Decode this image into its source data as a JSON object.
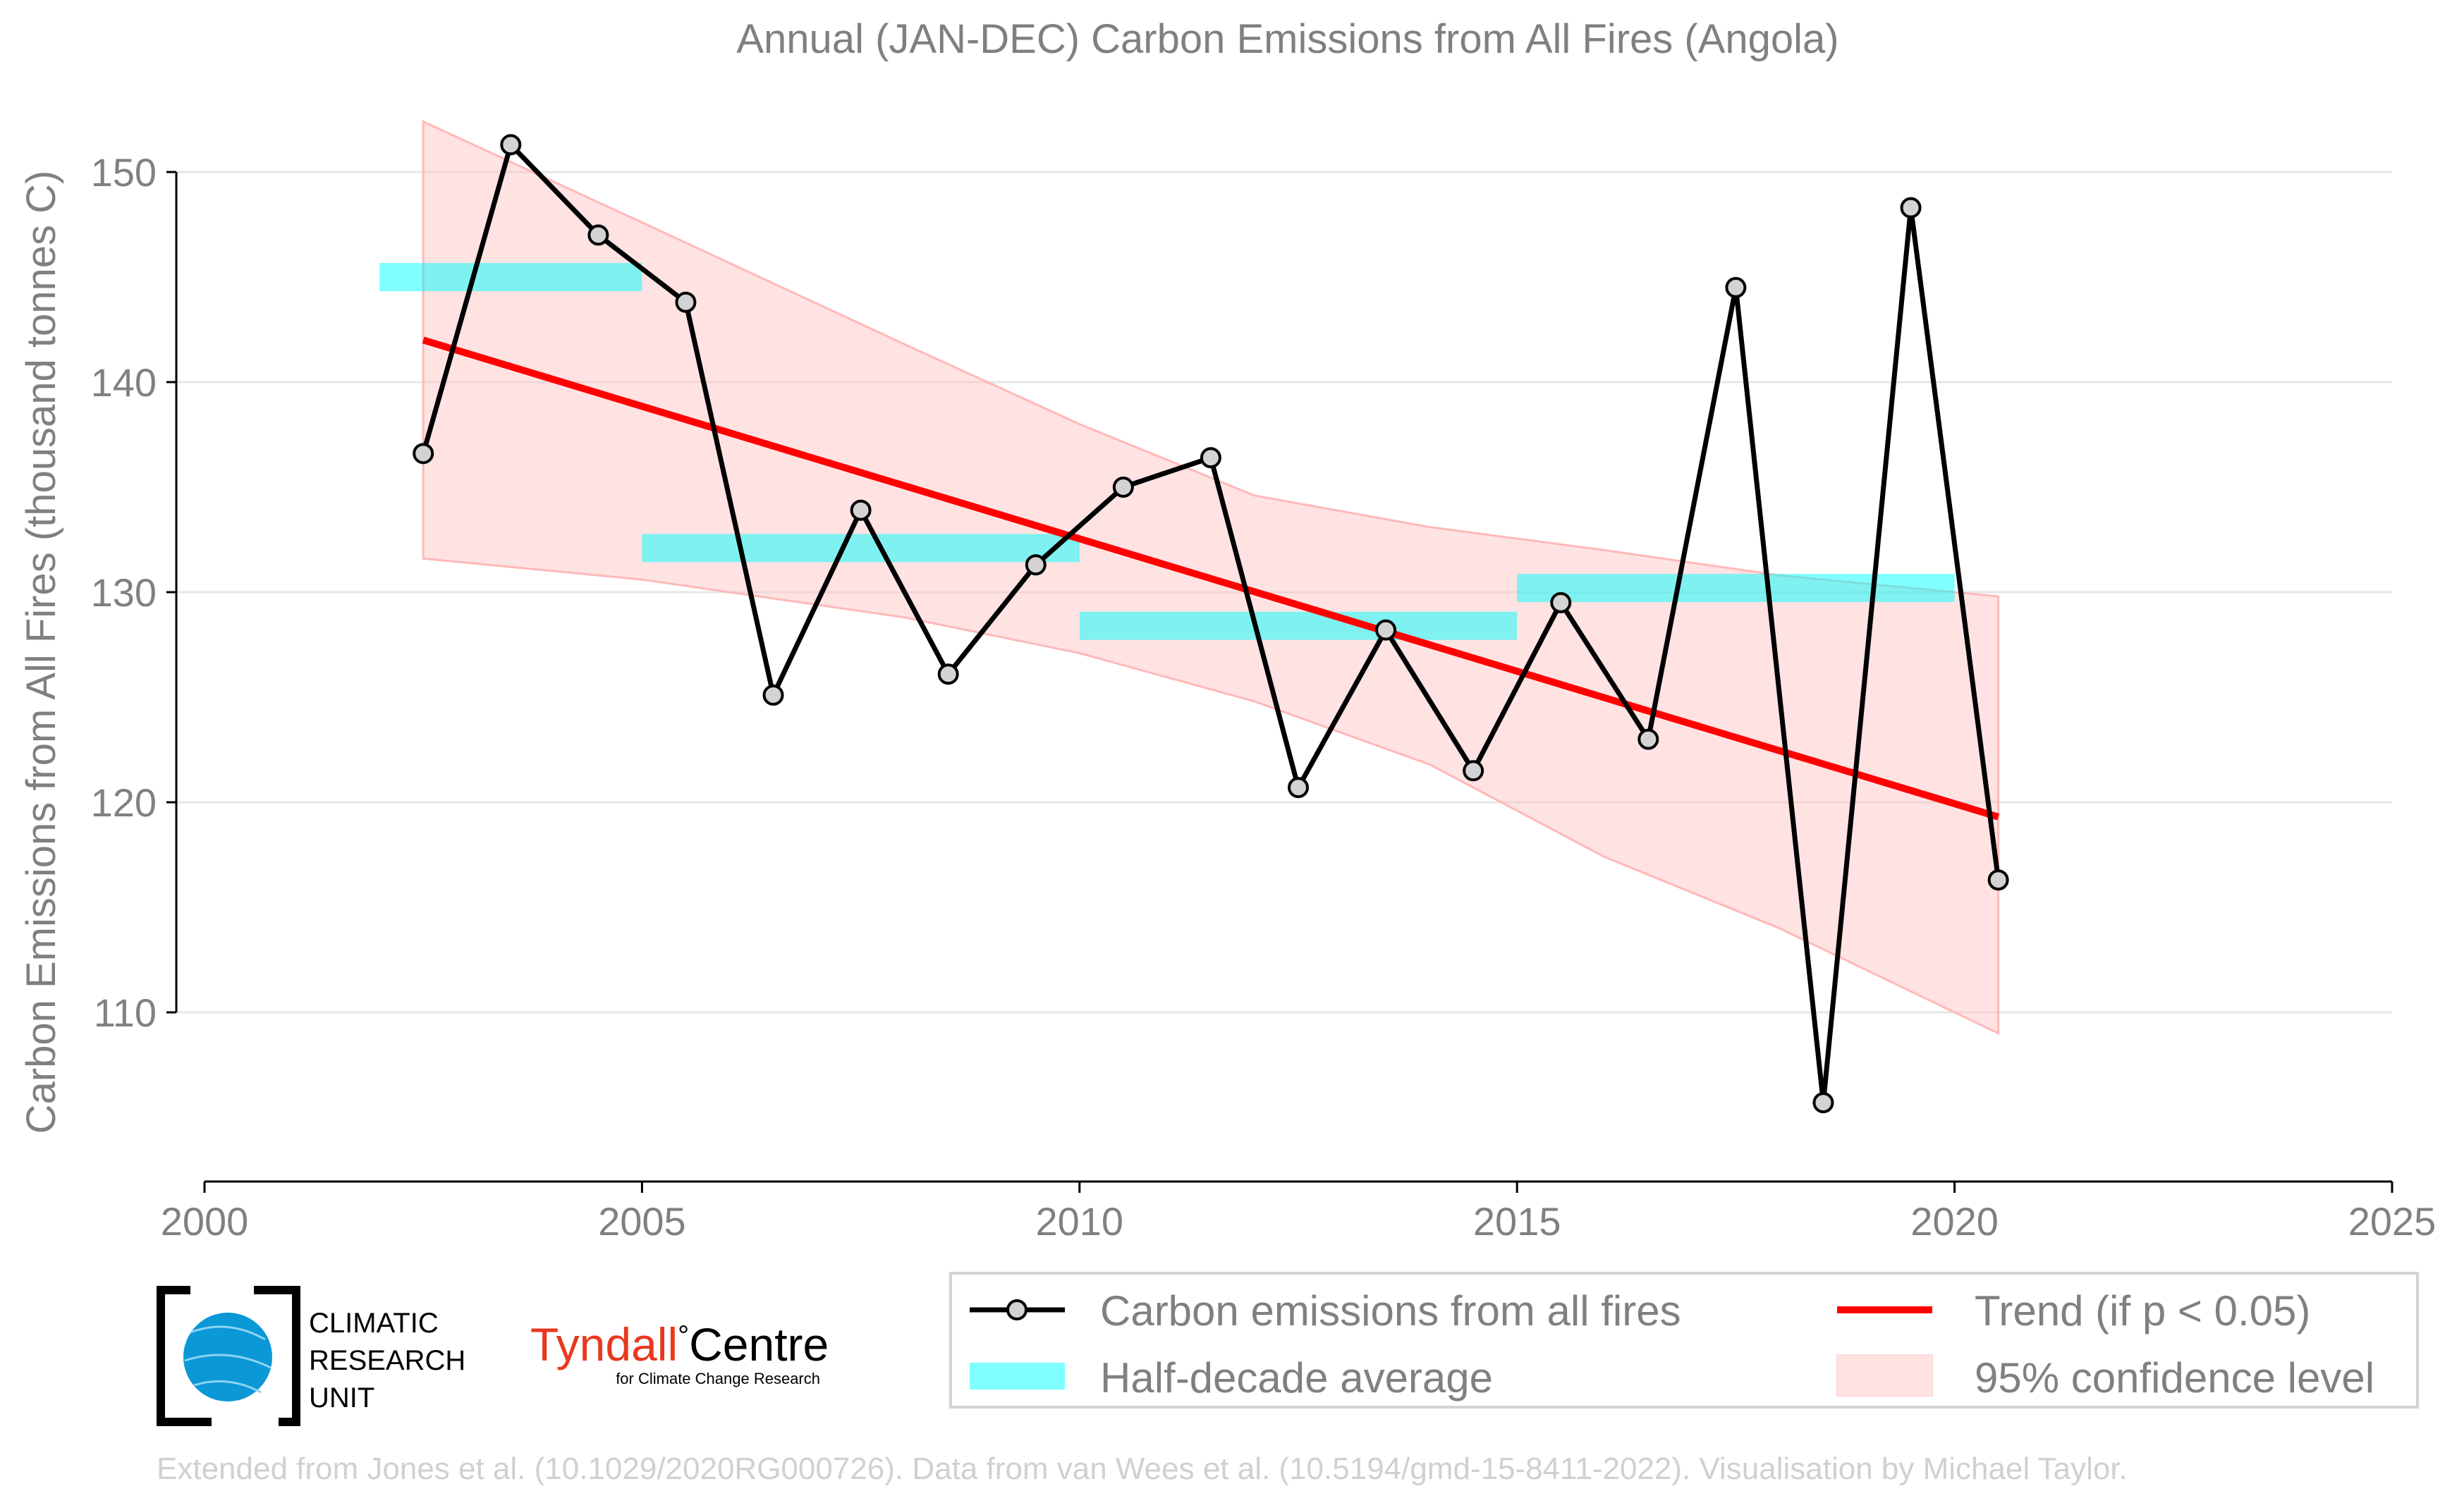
{
  "chart_data": {
    "type": "line",
    "title": "Annual (JAN-DEC) Carbon Emissions from All Fires (Angola)",
    "ylabel": "Carbon Emissions from All Fires (thousand tonnes C)",
    "xlabel": "",
    "xlim": [
      2000,
      2025
    ],
    "ylim": [
      102,
      156
    ],
    "xticks": [
      2000,
      2005,
      2010,
      2015,
      2020,
      2025
    ],
    "yticks": [
      110,
      120,
      130,
      140,
      150
    ],
    "grid": "horizontal",
    "legend_position": "bottom-right",
    "series": [
      {
        "name": "Carbon emissions from all fires",
        "color": "#000000",
        "marker_fill": "#d3d3d3",
        "x": [
          2002.5,
          2003.5,
          2004.5,
          2005.5,
          2006.5,
          2007.5,
          2008.5,
          2009.5,
          2010.5,
          2011.5,
          2012.5,
          2013.5,
          2014.5,
          2015.5,
          2016.5,
          2017.5,
          2018.5,
          2019.5,
          2020.5
        ],
        "y": [
          136.6,
          151.3,
          147.0,
          143.8,
          125.1,
          133.9,
          126.1,
          131.3,
          135.0,
          136.4,
          120.7,
          128.2,
          121.5,
          129.5,
          123.0,
          144.5,
          105.7,
          148.3,
          116.3
        ]
      }
    ],
    "half_decade_average": {
      "name": "Half-decade average",
      "color": "#00ffff",
      "segments": [
        {
          "x0": 2002,
          "x1": 2005,
          "y": 145.0
        },
        {
          "x0": 2005,
          "x1": 2010,
          "y": 132.1
        },
        {
          "x0": 2010,
          "x1": 2015,
          "y": 128.4
        },
        {
          "x0": 2015,
          "x1": 2020,
          "y": 130.2
        }
      ]
    },
    "trend": {
      "name": "Trend (if p < 0.05)",
      "color": "#ff0000",
      "x": [
        2002.5,
        2020.5
      ],
      "y": [
        142.0,
        119.3
      ]
    },
    "confidence": {
      "name": "95% confidence level",
      "color": "#ffc0c0",
      "x": [
        2002.5,
        2005,
        2008,
        2010,
        2012,
        2014,
        2016,
        2018,
        2020.5
      ],
      "upper": [
        152.4,
        147.6,
        141.8,
        138.0,
        134.6,
        133.1,
        132.0,
        130.8,
        129.8
      ],
      "lower": [
        131.6,
        130.6,
        128.8,
        127.1,
        124.8,
        121.8,
        117.4,
        114.0,
        109.0
      ]
    }
  },
  "logos": {
    "cru_lines": [
      "CLIMATIC",
      "RESEARCH",
      "UNIT"
    ],
    "tyndall_name": "Tyndall",
    "tyndall_degree": "°",
    "tyndall_centre": "Centre",
    "tyndall_sub": "for Climate Change Research"
  },
  "credit": "Extended from Jones et al. (10.1029/2020RG000726). Data from van Wees et al. (10.5194/gmd-15-8411-2022). Visualisation by Michael Taylor."
}
